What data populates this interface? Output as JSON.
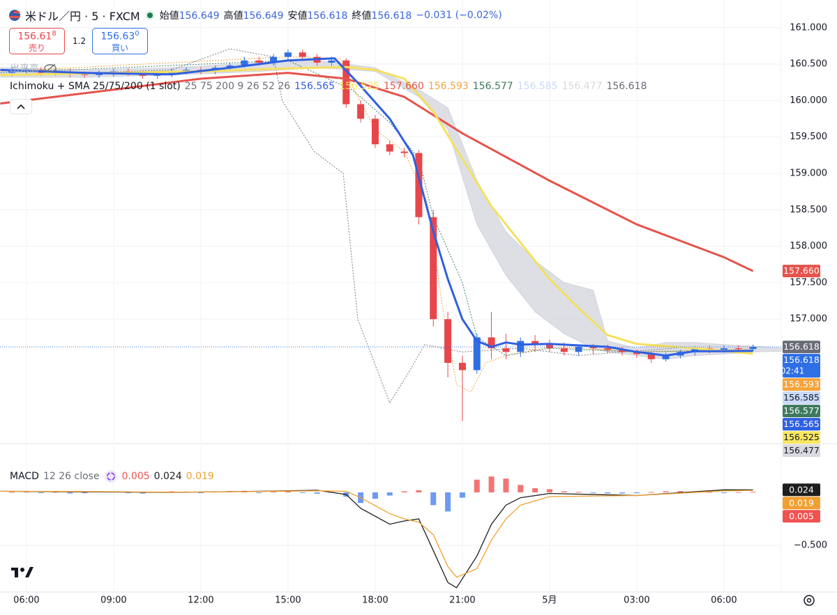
{
  "header": {
    "symbol": "米ドル／円 · 5 · FXCM",
    "ohlc": [
      {
        "label": "始値",
        "value": "156.649"
      },
      {
        "label": "高値",
        "value": "156.649"
      },
      {
        "label": "安値",
        "value": "156.618"
      },
      {
        "label": "終値",
        "value": "156.618"
      }
    ],
    "change": "−0.031 (−0.02%)",
    "sell": {
      "price": "156.61",
      "pip": "8",
      "label": "売り"
    },
    "spread": "1.2",
    "buy": {
      "price": "156.63",
      "pip": "0",
      "label": "買い"
    },
    "volume_label": "出来高",
    "indicator": {
      "name": "Ichimoku + SMA 25/75/200 (1 slot)",
      "params": "25 75 200 9 26 52 26"
    },
    "macd": {
      "name": "MACD",
      "params": "12 26 close"
    }
  },
  "chart_data": [
    {
      "type": "candlestick",
      "ylim": [
        155.31,
        161.38
      ],
      "yticks": [
        {
          "value": 161,
          "label": "161.000"
        },
        {
          "value": 160.5,
          "label": "160.500"
        },
        {
          "value": 160,
          "label": "160.000"
        },
        {
          "value": 159.5,
          "label": "159.500"
        },
        {
          "value": 159,
          "label": "159.000"
        },
        {
          "value": 158.5,
          "label": "158.500"
        },
        {
          "value": 158,
          "label": "158.000"
        },
        {
          "value": 157.5,
          "label": "157.500"
        },
        {
          "value": 157,
          "label": "157.000"
        }
      ],
      "up_color": "#2f6fe4",
      "down_color": "#e8464a",
      "x": [
        5.5,
        6,
        6.5,
        7,
        7.5,
        8,
        8.5,
        9,
        9.5,
        10,
        10.5,
        11,
        11.5,
        12,
        12.5,
        13,
        13.5,
        14,
        14.5,
        15,
        15.5,
        16,
        16.5,
        17,
        17.5,
        18,
        18.5,
        19,
        19.5,
        20,
        20.5,
        21,
        21.5,
        22,
        22.5,
        23,
        23.5,
        24,
        24.5,
        25,
        25.5,
        26,
        26.5,
        27,
        27.5,
        28,
        28.5,
        29,
        29.5,
        30,
        30.5,
        31
      ],
      "open": [
        160.38,
        160.4,
        160.42,
        160.38,
        160.4,
        160.36,
        160.35,
        160.37,
        160.4,
        160.38,
        160.34,
        160.36,
        160.4,
        160.42,
        160.4,
        160.45,
        160.48,
        160.55,
        160.52,
        160.6,
        160.66,
        160.6,
        160.52,
        160.55,
        159.95,
        159.75,
        159.4,
        159.3,
        159.28,
        158.4,
        157.0,
        156.4,
        156.3,
        156.75,
        156.6,
        156.55,
        156.7,
        156.65,
        156.6,
        156.55,
        156.62,
        156.6,
        156.58,
        156.55,
        156.52,
        156.45,
        156.5,
        156.55,
        156.6,
        156.58,
        156.6,
        156.59
      ],
      "high": [
        160.45,
        160.47,
        160.46,
        160.44,
        160.44,
        160.4,
        160.41,
        160.44,
        160.44,
        160.41,
        160.4,
        160.44,
        160.46,
        160.46,
        160.48,
        160.52,
        160.6,
        160.6,
        160.64,
        160.7,
        160.7,
        160.64,
        160.6,
        160.58,
        160.0,
        159.8,
        159.45,
        159.35,
        159.32,
        158.5,
        157.1,
        156.5,
        156.8,
        157.1,
        156.8,
        156.75,
        156.78,
        156.72,
        156.68,
        156.65,
        156.66,
        156.65,
        156.62,
        156.58,
        156.55,
        156.54,
        156.58,
        156.63,
        156.64,
        156.64,
        156.64,
        156.65
      ],
      "low": [
        160.33,
        160.35,
        160.34,
        160.34,
        160.32,
        160.31,
        160.31,
        160.33,
        160.34,
        160.3,
        160.3,
        160.32,
        160.36,
        160.36,
        160.36,
        160.42,
        160.45,
        160.48,
        160.48,
        160.56,
        160.56,
        160.48,
        160.48,
        159.9,
        159.7,
        159.35,
        159.25,
        159.22,
        158.3,
        156.9,
        156.2,
        155.6,
        156.25,
        156.45,
        156.45,
        156.48,
        156.55,
        156.55,
        156.5,
        156.5,
        156.52,
        156.53,
        156.5,
        156.47,
        156.4,
        156.42,
        156.46,
        156.5,
        156.53,
        156.54,
        156.55,
        156.56
      ],
      "close": [
        160.4,
        160.42,
        160.38,
        160.4,
        160.36,
        160.35,
        160.37,
        160.4,
        160.38,
        160.34,
        160.36,
        160.4,
        160.42,
        160.4,
        160.45,
        160.48,
        160.55,
        160.52,
        160.6,
        160.66,
        160.6,
        160.52,
        160.55,
        159.95,
        159.75,
        159.4,
        159.3,
        159.28,
        158.4,
        157.0,
        156.4,
        156.3,
        156.75,
        156.6,
        156.55,
        156.7,
        156.65,
        156.6,
        156.55,
        156.62,
        156.6,
        156.58,
        156.55,
        156.52,
        156.45,
        156.5,
        156.55,
        156.6,
        156.58,
        156.6,
        156.59,
        156.618
      ],
      "cloud": {
        "color": "#d1d4dc",
        "x": [
          5.1,
          8,
          11,
          14,
          16,
          18,
          19.5,
          20.5,
          21.5,
          22.5,
          23.5,
          24.5,
          25.5,
          26,
          27,
          28,
          29,
          30,
          31,
          32
        ],
        "upper": [
          160.45,
          160.42,
          160.45,
          160.52,
          160.55,
          160.45,
          160.15,
          159.9,
          158.9,
          158.2,
          157.8,
          157.5,
          157.4,
          156.7,
          156.6,
          156.68,
          156.68,
          156.65,
          156.63,
          156.6
        ],
        "lower": [
          160.32,
          160.32,
          160.35,
          160.4,
          160.45,
          160.4,
          160.05,
          159.6,
          158.3,
          157.6,
          157.1,
          156.8,
          156.6,
          156.55,
          156.5,
          156.45,
          156.5,
          156.52,
          156.55,
          156.56
        ]
      },
      "lines": [
        {
          "color": "#787b86",
          "dash": true,
          "width": 1,
          "x": [
            5.1,
            8,
            11,
            13,
            14.5,
            14.8,
            15.9,
            16.9,
            17.4,
            18.5,
            19.2,
            19.7,
            21,
            23,
            25,
            26.5,
            28.9
          ],
          "values": [
            160.35,
            160.38,
            160.42,
            160.71,
            160.6,
            160.0,
            159.3,
            159.0,
            157.0,
            155.85,
            156.3,
            156.65,
            156.55,
            156.6,
            156.5,
            156.55,
            156.618
          ]
        },
        {
          "color": "#f5a33b",
          "dash": true,
          "width": 1,
          "x": [
            5.1,
            15,
            16.8,
            17.2,
            18,
            19,
            19.8,
            20.3,
            20.8,
            21.3,
            21.8,
            22.5,
            24,
            27,
            31
          ],
          "values": [
            160.4,
            160.6,
            160.58,
            160.2,
            159.6,
            159.3,
            158.6,
            157.2,
            156.1,
            156.0,
            156.4,
            156.5,
            156.62,
            156.55,
            156.593
          ]
        },
        {
          "color": "#3d7a5e",
          "dash": true,
          "width": 1,
          "x": [
            5.1,
            15,
            17.2,
            18.5,
            19.5,
            20,
            21,
            21.5,
            22.5,
            24,
            27,
            31
          ],
          "values": [
            160.38,
            160.55,
            160.15,
            159.7,
            159.2,
            158.4,
            157.5,
            156.75,
            156.5,
            156.6,
            156.55,
            156.577
          ]
        },
        {
          "color": "#e5534b",
          "dash": false,
          "width": 3,
          "x": [
            5.1,
            9,
            12,
            15,
            17,
            19,
            21,
            24,
            27,
            30,
            31
          ],
          "values": [
            159.96,
            160.15,
            160.3,
            160.38,
            160.3,
            160.05,
            159.55,
            158.9,
            158.3,
            157.85,
            157.66
          ]
        },
        {
          "color": "#f5e05e",
          "dash": false,
          "width": 3,
          "x": [
            5.1,
            9,
            12,
            15,
            17,
            18,
            19,
            20,
            21,
            22,
            23,
            24,
            25,
            26,
            27,
            29,
            31
          ],
          "values": [
            160.35,
            160.38,
            160.4,
            160.44,
            160.46,
            160.42,
            160.3,
            159.85,
            159.2,
            158.55,
            158.05,
            157.55,
            157.15,
            156.78,
            156.66,
            156.6,
            156.525
          ]
        },
        {
          "color": "#2f5fe0",
          "dash": false,
          "width": 3,
          "x": [
            5.1,
            8,
            11,
            13,
            15,
            16.6,
            17.5,
            18.5,
            19.3,
            20,
            20.5,
            21,
            21.5,
            22,
            22.5,
            23,
            24,
            25,
            26,
            27,
            28,
            29,
            30,
            31
          ],
          "values": [
            160.42,
            160.38,
            160.36,
            160.45,
            160.55,
            160.58,
            160.2,
            159.75,
            159.25,
            158.2,
            157.55,
            157.0,
            156.7,
            156.62,
            156.68,
            156.65,
            156.66,
            156.64,
            156.62,
            156.55,
            156.5,
            156.56,
            156.56,
            156.565
          ]
        }
      ],
      "price_tags": [
        {
          "value": 157.66,
          "label": "157.660",
          "color": "#e5534b"
        },
        {
          "value": 156.618,
          "label": "156.618",
          "color": "#6a6d78"
        },
        {
          "value": 156.618,
          "label": "156.618",
          "color": "#2f6fe4",
          "countdown": "02:41"
        },
        {
          "value": 156.593,
          "label": "156.593",
          "color": "#f5a33b"
        },
        {
          "value": 156.585,
          "label": "156.585",
          "color": "#c9d9f7"
        },
        {
          "value": 156.577,
          "label": "156.577",
          "color": "#3d7a5e"
        },
        {
          "value": 156.565,
          "label": "156.565",
          "color": "#2f5fe0"
        },
        {
          "value": 156.525,
          "label": "156.525",
          "color": "#f8e65f"
        },
        {
          "value": 156.477,
          "label": "156.477",
          "color": "#d9dadf"
        }
      ]
    },
    {
      "type": "macd",
      "xlim": [
        5.09,
        31.97
      ],
      "xticks": [
        {
          "value": 6,
          "label": "06:00"
        },
        {
          "value": 9,
          "label": "09:00"
        },
        {
          "value": 12,
          "label": "12:00"
        },
        {
          "value": 15,
          "label": "15:00"
        },
        {
          "value": 18,
          "label": "18:00"
        },
        {
          "value": 21,
          "label": "21:00"
        },
        {
          "value": 24,
          "label": "5月"
        },
        {
          "value": 27,
          "label": "03:00"
        },
        {
          "value": 30,
          "label": "06:00"
        }
      ],
      "ylim": [
        -0.94,
        0.44
      ],
      "yticks": [
        {
          "value": -0.5,
          "label": "−0.500"
        }
      ],
      "x": [
        5.1,
        8,
        11,
        14,
        16,
        17,
        17.5,
        18.5,
        19,
        19.5,
        20,
        20.5,
        20.8,
        21.5,
        22,
        22.5,
        23,
        24,
        27,
        30,
        31
      ],
      "series": [
        {
          "color": "#1e1e1e",
          "values": [
            0.01,
            0.005,
            0.0,
            0.01,
            0.02,
            -0.02,
            -0.15,
            -0.3,
            -0.27,
            -0.25,
            -0.55,
            -0.85,
            -0.9,
            -0.6,
            -0.3,
            -0.12,
            -0.05,
            -0.01,
            -0.03,
            0.024,
            0.024
          ]
        },
        {
          "color": "#f0a030",
          "values": [
            0.01,
            0.008,
            0.002,
            0.008,
            0.015,
            0.01,
            -0.05,
            -0.2,
            -0.25,
            -0.28,
            -0.4,
            -0.7,
            -0.8,
            -0.72,
            -0.45,
            -0.25,
            -0.12,
            -0.04,
            -0.03,
            0.015,
            0.019
          ]
        }
      ],
      "histogram": {
        "up_color": "#ef5350",
        "down_color": "#4a7ff0",
        "values": [
          0.005,
          0.01,
          -0.005,
          0.005,
          -0.01,
          -0.008,
          0.006,
          0.01,
          -0.004,
          -0.01,
          0.004,
          0.01,
          0.008,
          -0.004,
          0.01,
          0.012,
          0.015,
          -0.005,
          0.012,
          0.015,
          -0.006,
          -0.012,
          0.004,
          -0.04,
          -0.1,
          -0.06,
          -0.03,
          0.01,
          0.02,
          -0.12,
          -0.18,
          -0.05,
          0.12,
          0.15,
          0.13,
          0.07,
          0.04,
          0.03,
          0.01,
          0.005,
          -0.005,
          -0.01,
          -0.01,
          -0.008,
          0.004,
          0.01,
          0.012,
          0.008,
          0.004,
          -0.002,
          0.003,
          0.005
        ]
      },
      "macd_tags": [
        {
          "value": 0.024,
          "label": "0.024",
          "color": "#1e1e1e"
        },
        {
          "value": 0.019,
          "label": "0.019",
          "color": "#f0a030"
        },
        {
          "value": 0.005,
          "label": "0.005",
          "color": "#ef5350"
        }
      ]
    }
  ]
}
